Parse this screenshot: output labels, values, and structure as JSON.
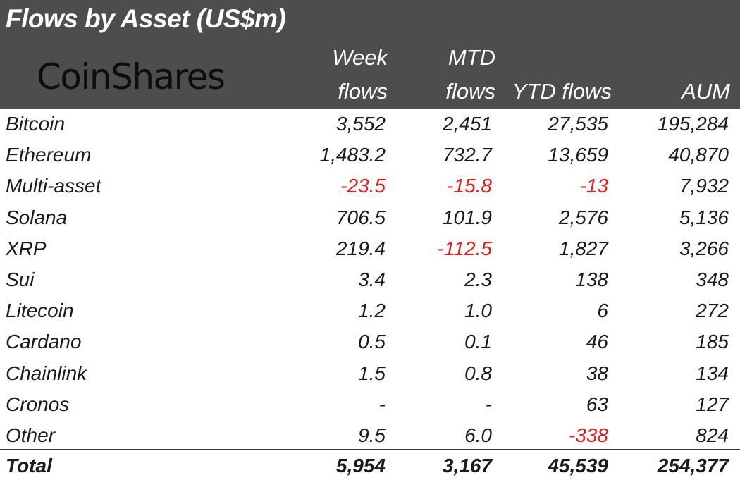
{
  "title": "Flows by Asset (US$m)",
  "logo_text": "CoinShares",
  "columns": {
    "week_line1": "Week",
    "week_line2": "flows",
    "mtd_line1": "MTD",
    "mtd_line2": "flows",
    "ytd": "YTD flows",
    "aum": "AUM"
  },
  "rows": [
    {
      "asset": "Bitcoin",
      "week": "3,552",
      "mtd": "2,451",
      "ytd": "27,535",
      "aum": "195,284",
      "neg": [
        false,
        false,
        false
      ]
    },
    {
      "asset": "Ethereum",
      "week": "1,483.2",
      "mtd": "732.7",
      "ytd": "13,659",
      "aum": "40,870",
      "neg": [
        false,
        false,
        false
      ]
    },
    {
      "asset": "Multi-asset",
      "week": "-23.5",
      "mtd": "-15.8",
      "ytd": "-13",
      "aum": "7,932",
      "neg": [
        true,
        true,
        true
      ]
    },
    {
      "asset": "Solana",
      "week": "706.5",
      "mtd": "101.9",
      "ytd": "2,576",
      "aum": "5,136",
      "neg": [
        false,
        false,
        false
      ]
    },
    {
      "asset": "XRP",
      "week": "219.4",
      "mtd": "-112.5",
      "ytd": "1,827",
      "aum": "3,266",
      "neg": [
        false,
        true,
        false
      ]
    },
    {
      "asset": "Sui",
      "week": "3.4",
      "mtd": "2.3",
      "ytd": "138",
      "aum": "348",
      "neg": [
        false,
        false,
        false
      ]
    },
    {
      "asset": "Litecoin",
      "week": "1.2",
      "mtd": "1.0",
      "ytd": "6",
      "aum": "272",
      "neg": [
        false,
        false,
        false
      ]
    },
    {
      "asset": "Cardano",
      "week": "0.5",
      "mtd": "0.1",
      "ytd": "46",
      "aum": "185",
      "neg": [
        false,
        false,
        false
      ]
    },
    {
      "asset": "Chainlink",
      "week": "1.5",
      "mtd": "0.8",
      "ytd": "38",
      "aum": "134",
      "neg": [
        false,
        false,
        false
      ]
    },
    {
      "asset": "Cronos",
      "week": "-",
      "mtd": "-",
      "ytd": "63",
      "aum": "127",
      "neg": [
        false,
        false,
        false
      ]
    },
    {
      "asset": "Other",
      "week": "9.5",
      "mtd": "6.0",
      "ytd": "-338",
      "aum": "824",
      "neg": [
        false,
        false,
        true
      ]
    }
  ],
  "total": {
    "label": "Total",
    "week": "5,954",
    "mtd": "3,167",
    "ytd": "45,539",
    "aum": "254,377"
  },
  "colors": {
    "header_bg": "#4d4d4d",
    "negative": "#e02020"
  }
}
